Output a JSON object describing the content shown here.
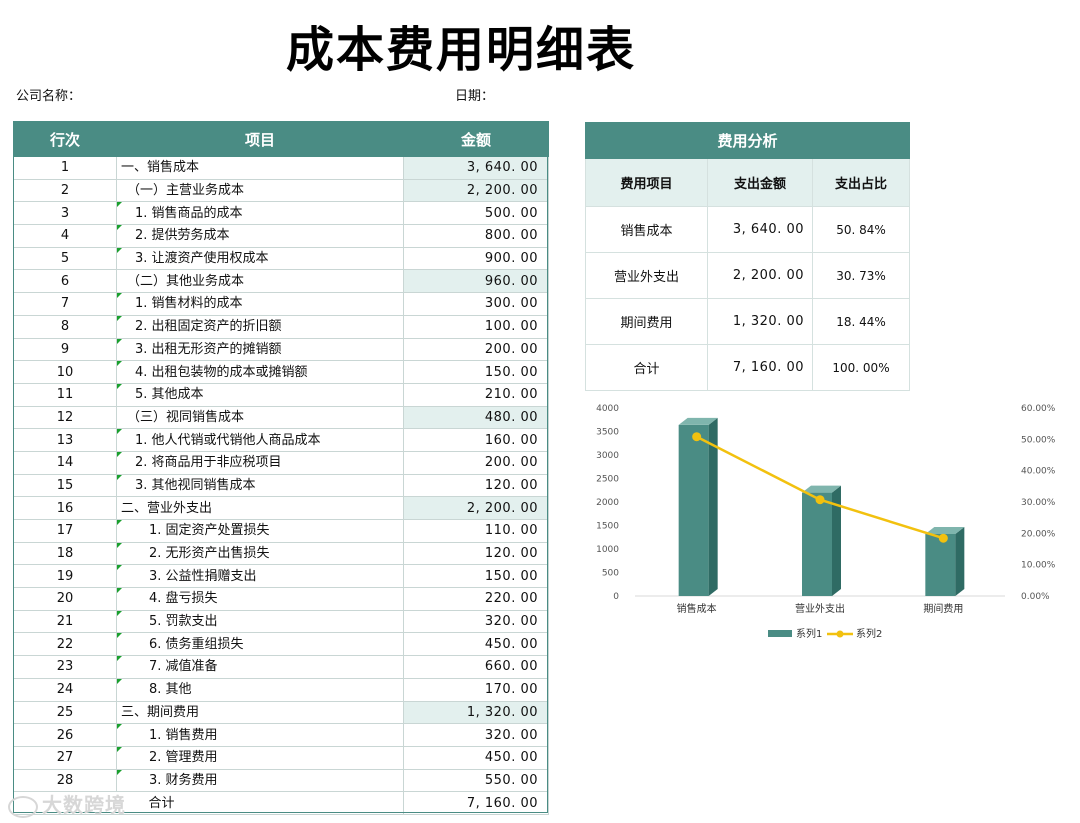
{
  "title": "成本费用明细表",
  "company_label": "公司名称：",
  "date_label": "日期：",
  "main_table": {
    "headers": [
      "行次",
      "项目",
      "金额"
    ],
    "rows": [
      {
        "no": "1",
        "item": "一、销售成本",
        "amount": "3, 640. 00",
        "level": 0,
        "sub": true
      },
      {
        "no": "2",
        "item": "（一）主营业务成本",
        "amount": "2, 200. 00",
        "level": 1,
        "sub": true
      },
      {
        "no": "3",
        "item": "1. 销售商品的成本",
        "amount": "500. 00",
        "level": 2,
        "sub": false
      },
      {
        "no": "4",
        "item": "2. 提供劳务成本",
        "amount": "800. 00",
        "level": 2,
        "sub": false
      },
      {
        "no": "5",
        "item": "3. 让渡资产使用权成本",
        "amount": "900. 00",
        "level": 2,
        "sub": false
      },
      {
        "no": "6",
        "item": "（二）其他业务成本",
        "amount": "960. 00",
        "level": 1,
        "sub": true
      },
      {
        "no": "7",
        "item": "1. 销售材料的成本",
        "amount": "300. 00",
        "level": 2,
        "sub": false
      },
      {
        "no": "8",
        "item": "2. 出租固定资产的折旧额",
        "amount": "100. 00",
        "level": 2,
        "sub": false
      },
      {
        "no": "9",
        "item": "3. 出租无形资产的摊销额",
        "amount": "200. 00",
        "level": 2,
        "sub": false
      },
      {
        "no": "10",
        "item": "4. 出租包装物的成本或摊销额",
        "amount": "150. 00",
        "level": 2,
        "sub": false
      },
      {
        "no": "11",
        "item": "5. 其他成本",
        "amount": "210. 00",
        "level": 2,
        "sub": false
      },
      {
        "no": "12",
        "item": "（三）视同销售成本",
        "amount": "480. 00",
        "level": 1,
        "sub": true
      },
      {
        "no": "13",
        "item": "1. 他人代销或代销他人商品成本",
        "amount": "160. 00",
        "level": 2,
        "sub": false
      },
      {
        "no": "14",
        "item": "2. 将商品用于非应税项目",
        "amount": "200. 00",
        "level": 2,
        "sub": false
      },
      {
        "no": "15",
        "item": "3. 其他视同销售成本",
        "amount": "120. 00",
        "level": 2,
        "sub": false
      },
      {
        "no": "16",
        "item": "二、营业外支出",
        "amount": "2, 200. 00",
        "level": 0,
        "sub": true
      },
      {
        "no": "17",
        "item": "1. 固定资产处置损失",
        "amount": "110. 00",
        "level": 3,
        "sub": false
      },
      {
        "no": "18",
        "item": "2. 无形资产出售损失",
        "amount": "120. 00",
        "level": 3,
        "sub": false
      },
      {
        "no": "19",
        "item": "3. 公益性捐赠支出",
        "amount": "150. 00",
        "level": 3,
        "sub": false
      },
      {
        "no": "20",
        "item": "4. 盘亏损失",
        "amount": "220. 00",
        "level": 3,
        "sub": false
      },
      {
        "no": "21",
        "item": "5. 罚款支出",
        "amount": "320. 00",
        "level": 3,
        "sub": false
      },
      {
        "no": "22",
        "item": "6. 债务重组损失",
        "amount": "450. 00",
        "level": 3,
        "sub": false
      },
      {
        "no": "23",
        "item": "7. 减值准备",
        "amount": "660. 00",
        "level": 3,
        "sub": false
      },
      {
        "no": "24",
        "item": "8. 其他",
        "amount": "170. 00",
        "level": 3,
        "sub": false
      },
      {
        "no": "25",
        "item": "三、期间费用",
        "amount": "1, 320. 00",
        "level": 0,
        "sub": true
      },
      {
        "no": "26",
        "item": "1. 销售费用",
        "amount": "320. 00",
        "level": 3,
        "sub": false
      },
      {
        "no": "27",
        "item": "2. 管理费用",
        "amount": "450. 00",
        "level": 3,
        "sub": false
      },
      {
        "no": "28",
        "item": "3. 财务费用",
        "amount": "550. 00",
        "level": 3,
        "sub": false
      }
    ],
    "total_label": "合计",
    "total_amount": "7, 160. 00"
  },
  "analysis": {
    "title": "费用分析",
    "headers": [
      "费用项目",
      "支出金额",
      "支出占比"
    ],
    "rows": [
      {
        "item": "销售成本",
        "amount": "3, 640. 00",
        "pct": "50. 84%"
      },
      {
        "item": "营业外支出",
        "amount": "2, 200. 00",
        "pct": "30. 73%"
      },
      {
        "item": "期间费用",
        "amount": "1, 320. 00",
        "pct": "18. 44%"
      },
      {
        "item": "合计",
        "amount": "7, 160. 00",
        "pct": "100. 00%"
      }
    ]
  },
  "chart_data": {
    "type": "bar",
    "categories": [
      "销售成本",
      "营业外支出",
      "期间费用"
    ],
    "series": [
      {
        "name": "系列1",
        "type": "bar",
        "axis": "left",
        "values": [
          3640,
          2200,
          1320
        ],
        "color": "#4a8c84"
      },
      {
        "name": "系列2",
        "type": "line",
        "axis": "right",
        "values": [
          0.5084,
          0.3073,
          0.1844
        ],
        "color": "#f2c10f"
      }
    ],
    "left_axis": {
      "range": [
        0,
        4000
      ],
      "ticks": [
        "0",
        "500",
        "1000",
        "1500",
        "2000",
        "2500",
        "3000",
        "3500",
        "4000"
      ]
    },
    "right_axis": {
      "range": [
        0,
        0.6
      ],
      "ticks": [
        "0.00%",
        "10.00%",
        "20.00%",
        "30.00%",
        "40.00%",
        "50.00%",
        "60.00%"
      ]
    },
    "legend": "bottom",
    "grid": false
  },
  "watermark": "大数跨境"
}
